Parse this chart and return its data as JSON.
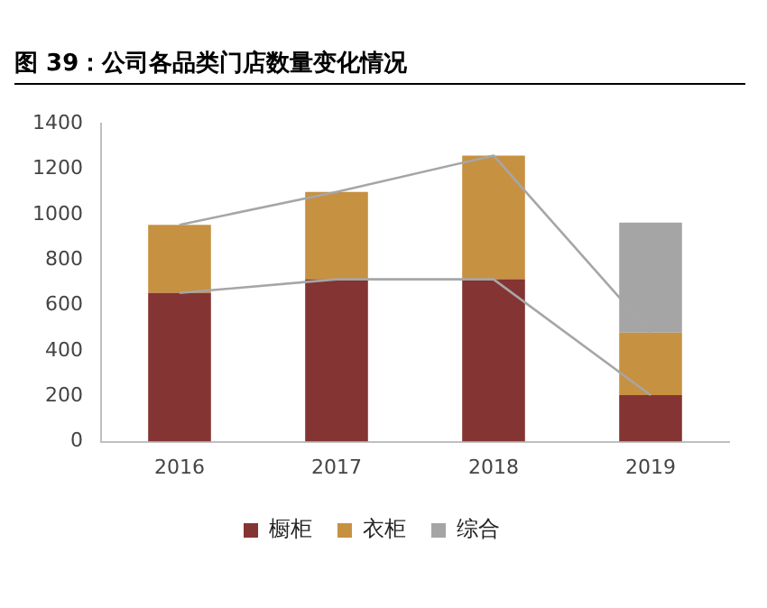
{
  "chart_data": {
    "type": "bar",
    "title": "图 39：公司各品类门店数量变化情况",
    "categories": [
      "2016",
      "2017",
      "2018",
      "2019"
    ],
    "stacked": true,
    "series": [
      {
        "name": "橱柜",
        "color": "#843432",
        "values": [
          655,
          715,
          715,
          205
        ]
      },
      {
        "name": "衣柜",
        "color": "#c79142",
        "values": [
          300,
          385,
          545,
          275
        ]
      },
      {
        "name": "综合",
        "color": "#a5a5a5",
        "values": [
          0,
          0,
          0,
          485
        ]
      },
      {
        "type": "line",
        "color": "#a6a6a6",
        "values": [
          655,
          715,
          715,
          205
        ]
      },
      {
        "type": "line",
        "color": "#a6a6a6",
        "values": [
          955,
          1100,
          1260,
          480
        ]
      }
    ],
    "ylim": [
      0,
      1400
    ],
    "yticks": [
      0,
      200,
      400,
      600,
      800,
      1000,
      1200,
      1400
    ],
    "grid": false,
    "legend": "bottom"
  }
}
